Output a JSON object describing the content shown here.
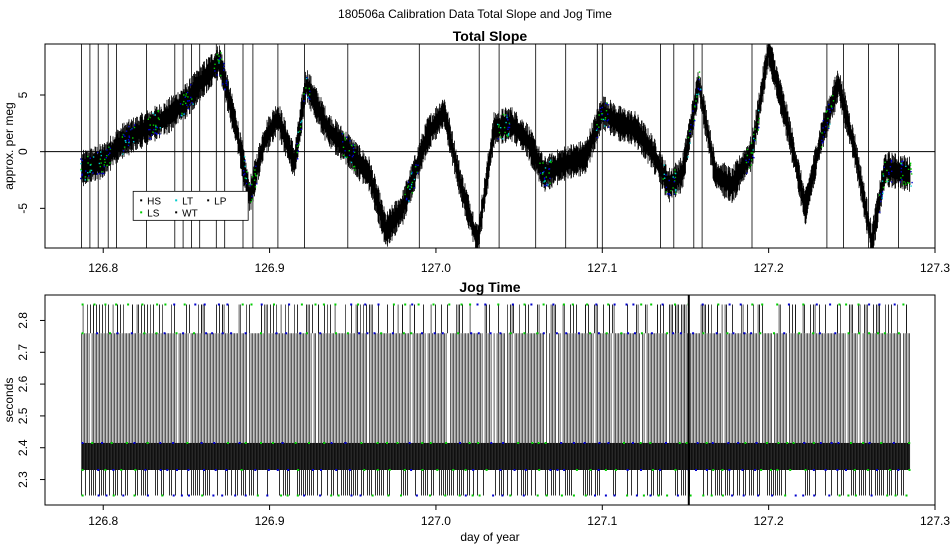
{
  "suptitle": "180506a   Calibration Data Total Slope and Jog Time",
  "colors": {
    "HS": "#000000",
    "LS": "#00cc00",
    "LT": "#00cccc",
    "WT": "#000000",
    "LP": "#000000",
    "series_blue": "#0000cc"
  },
  "chart_data": [
    {
      "type": "line",
      "title": "Total Slope",
      "xlabel": "",
      "ylabel": "approx. per meg",
      "xlim": [
        126.765,
        127.3
      ],
      "ylim": [
        -8.5,
        9.5
      ],
      "xticks": [
        "126.8",
        "126.9",
        "127.0",
        "127.1",
        "127.2",
        "127.3"
      ],
      "yticks": [
        "-5",
        "0",
        "5"
      ],
      "hline": 0,
      "legend": {
        "placement": "bottom-left",
        "entries": [
          "HS",
          "LS",
          "LT",
          "WT",
          "LP"
        ]
      },
      "x": [
        126.787,
        126.8,
        126.812,
        126.825,
        126.838,
        126.85,
        126.858,
        126.87,
        126.88,
        126.888,
        126.897,
        126.905,
        126.915,
        126.922,
        126.935,
        126.948,
        126.96,
        126.97,
        126.98,
        126.995,
        127.005,
        127.015,
        127.025,
        127.035,
        127.045,
        127.055,
        127.065,
        127.078,
        127.09,
        127.1,
        127.11,
        127.12,
        127.13,
        127.14,
        127.148,
        127.158,
        127.168,
        127.178,
        127.19,
        127.2,
        127.212,
        127.222,
        127.232,
        127.242,
        127.252,
        127.262,
        127.27,
        127.285
      ],
      "y": [
        -1.5,
        -0.8,
        1.0,
        2.0,
        3.0,
        4.5,
        6.0,
        8.0,
        2.0,
        -4.0,
        1.0,
        3.0,
        -1.0,
        6.0,
        2.0,
        0.0,
        -2.0,
        -7.0,
        -5.0,
        1.5,
        3.5,
        -3.0,
        -8.0,
        2.0,
        2.5,
        1.0,
        -2.0,
        -1.0,
        -0.5,
        3.5,
        2.5,
        2.0,
        0.0,
        -3.0,
        -2.0,
        6.0,
        -2.0,
        -3.0,
        0.0,
        9.0,
        2.0,
        -5.0,
        1.5,
        6.0,
        0.0,
        -8.0,
        -1.5,
        -2.0
      ]
    },
    {
      "type": "line",
      "title": "Jog Time",
      "xlabel": "day of year",
      "ylabel": "seconds",
      "xlim": [
        126.765,
        127.3
      ],
      "ylim": [
        2.22,
        2.88
      ],
      "xticks": [
        "126.8",
        "126.9",
        "127.0",
        "127.1",
        "127.2",
        "127.3"
      ],
      "yticks": [
        "2.3",
        "2.4",
        "2.5",
        "2.6",
        "2.7",
        "2.8"
      ],
      "x_range": [
        126.787,
        127.285
      ],
      "levels": [
        2.25,
        2.33,
        2.415,
        2.76,
        2.85
      ]
    }
  ]
}
